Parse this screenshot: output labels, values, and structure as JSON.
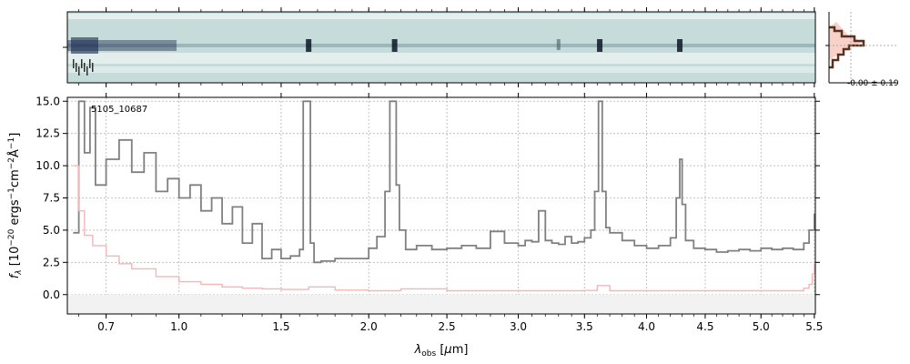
{
  "chart_data": {
    "type": "line",
    "object_label": "5105_10687",
    "xlabel": "λ_obs [μm]",
    "ylabel": "f_λ [10^-20 ergs^-1cm^-2Å^-1]",
    "xlim": [
      0.56,
      5.51
    ],
    "ylim": [
      -1.5,
      15.3
    ],
    "x_scale": "power-stretched (ticks dense at short λ)",
    "xticks": [
      0.7,
      1.0,
      1.5,
      2.0,
      2.5,
      3.0,
      3.5,
      4.0,
      4.5,
      5.0,
      5.5
    ],
    "xtick_labels": [
      "0.7",
      "1.0",
      "1.5",
      "2.0",
      "2.5",
      "3.0",
      "3.5",
      "4.0",
      "4.5",
      "5.0",
      "5.5"
    ],
    "yticks": [
      0.0,
      2.5,
      5.0,
      7.5,
      10.0,
      12.5,
      15.0
    ],
    "ytick_labels": [
      "0.0",
      "2.5",
      "5.0",
      "7.5",
      "10.0",
      "12.5",
      "15.0"
    ],
    "grid": true,
    "series": [
      {
        "role": "flux",
        "color": "#808080",
        "x": [
          0.58,
          0.6,
          0.62,
          0.64,
          0.66,
          0.7,
          0.75,
          0.8,
          0.85,
          0.9,
          0.95,
          1.0,
          1.05,
          1.1,
          1.15,
          1.2,
          1.25,
          1.3,
          1.35,
          1.4,
          1.45,
          1.5,
          1.55,
          1.6,
          1.62,
          1.64,
          1.66,
          1.68,
          1.72,
          1.8,
          1.9,
          2.0,
          2.05,
          2.1,
          2.13,
          2.15,
          2.17,
          2.19,
          2.23,
          2.3,
          2.4,
          2.5,
          2.6,
          2.7,
          2.8,
          2.9,
          3.0,
          3.05,
          3.1,
          3.15,
          3.2,
          3.25,
          3.3,
          3.35,
          3.4,
          3.45,
          3.5,
          3.55,
          3.58,
          3.61,
          3.64,
          3.67,
          3.7,
          3.8,
          3.9,
          4.0,
          4.1,
          4.2,
          4.25,
          4.28,
          4.3,
          4.33,
          4.4,
          4.5,
          4.6,
          4.7,
          4.8,
          4.9,
          5.0,
          5.1,
          5.2,
          5.3,
          5.4,
          5.45,
          5.5
        ],
        "y": [
          4.8,
          15.0,
          11.0,
          14.5,
          8.5,
          10.5,
          12.0,
          9.5,
          11.0,
          8.0,
          9.0,
          7.5,
          8.5,
          6.5,
          7.5,
          5.5,
          6.8,
          4.0,
          5.5,
          2.8,
          3.5,
          2.8,
          3.0,
          3.5,
          15.0,
          15.0,
          4.0,
          2.5,
          2.6,
          2.8,
          2.8,
          3.6,
          4.5,
          8.0,
          15.0,
          15.0,
          8.5,
          5.0,
          3.5,
          3.8,
          3.5,
          3.6,
          3.8,
          3.6,
          4.9,
          4.0,
          3.8,
          4.2,
          4.1,
          6.5,
          4.2,
          4.0,
          3.9,
          4.5,
          4.0,
          4.1,
          4.4,
          5.0,
          8.0,
          15.0,
          8.0,
          5.2,
          4.8,
          4.2,
          3.8,
          3.6,
          3.8,
          4.4,
          7.5,
          10.5,
          7.0,
          4.2,
          3.6,
          3.5,
          3.3,
          3.4,
          3.5,
          3.4,
          3.6,
          3.5,
          3.6,
          3.5,
          4.0,
          5.0,
          6.3
        ]
      },
      {
        "role": "error",
        "color": "#f4b6b6",
        "x": [
          0.58,
          0.6,
          0.62,
          0.65,
          0.7,
          0.75,
          0.8,
          0.9,
          1.0,
          1.1,
          1.2,
          1.3,
          1.4,
          1.5,
          1.65,
          1.8,
          2.0,
          2.2,
          2.5,
          3.0,
          3.5,
          3.6,
          3.7,
          4.0,
          4.5,
          5.0,
          5.3,
          5.4,
          5.45,
          5.48,
          5.5
        ],
        "y": [
          10.0,
          6.5,
          4.6,
          3.8,
          3.0,
          2.4,
          2.0,
          1.4,
          1.0,
          0.8,
          0.6,
          0.5,
          0.45,
          0.4,
          0.6,
          0.35,
          0.3,
          0.45,
          0.3,
          0.3,
          0.32,
          0.7,
          0.3,
          0.3,
          0.3,
          0.3,
          0.3,
          0.5,
          0.8,
          1.6,
          2.4
        ]
      }
    ],
    "inset": {
      "label": "-0.00 ± 0.19",
      "histogram_color": "#5a3020",
      "fill_color": "#f6c6bc"
    }
  },
  "spectrum_2d": {
    "background_color": "#c6dcda",
    "trace_color": "#1a2a50",
    "emission_lines_um": [
      1.65,
      2.16,
      3.62,
      4.28
    ],
    "absorption_lines_um": [
      3.3
    ]
  }
}
